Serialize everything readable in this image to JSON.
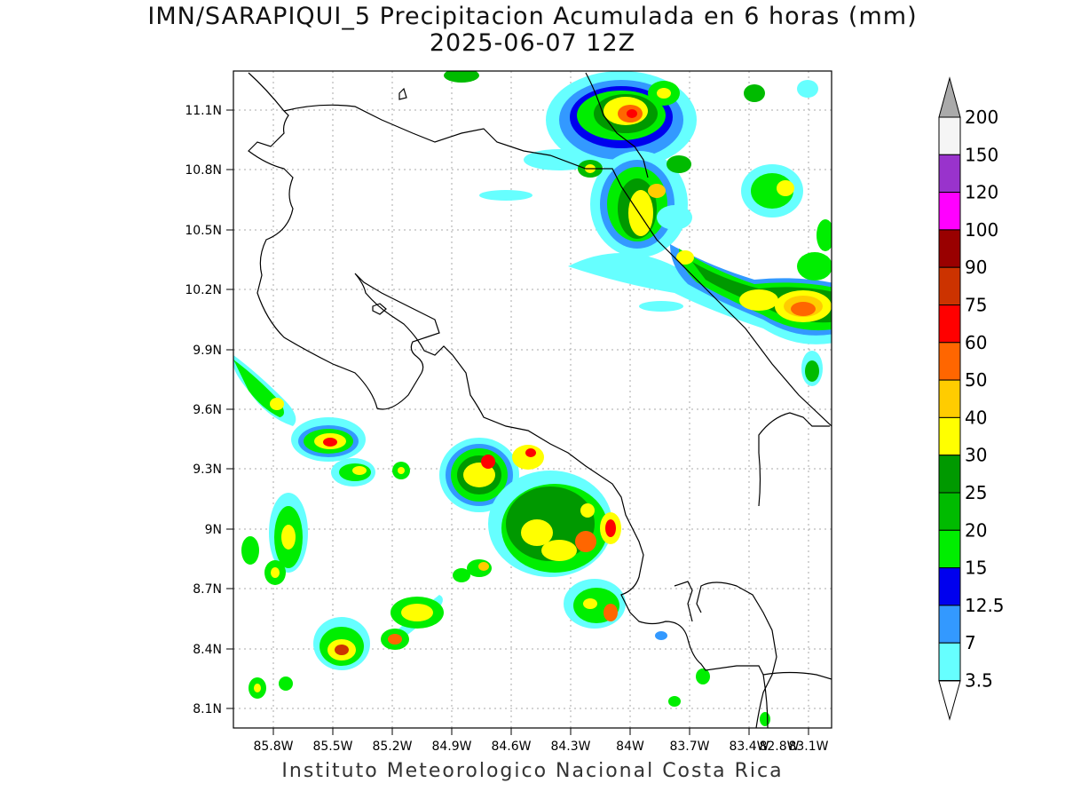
{
  "title": {
    "line1": "IMN/SARAPIQUI_5 Precipitacion Acumulada en 6 horas (mm)",
    "line2": "2025-06-07 12Z"
  },
  "footer": "Instituto Meteorologico Nacional Costa Rica",
  "axes": {
    "lat_labels": [
      "11.1N",
      "10.8N",
      "10.5N",
      "10.2N",
      "9.9N",
      "9.6N",
      "9.3N",
      "9N",
      "8.7N",
      "8.4N",
      "8.1N"
    ],
    "lon_labels": [
      "85.8W",
      "85.5W",
      "85.2W",
      "84.9W",
      "84.6W",
      "84.3W",
      "84W",
      "83.7W",
      "83.4W",
      "83.1W",
      "82.8W"
    ]
  },
  "colorbar": {
    "labels": [
      "200",
      "150",
      "120",
      "100",
      "90",
      "75",
      "60",
      "50",
      "40",
      "30",
      "25",
      "20",
      "15",
      "12.5",
      "7",
      "3.5"
    ],
    "colors": [
      "#f5f5f5",
      "#9933cc",
      "#ff00ff",
      "#990000",
      "#cc3300",
      "#ff0000",
      "#ff6600",
      "#ffcc00",
      "#ffff00",
      "#009900",
      "#00bb00",
      "#00ee00",
      "#0000ee",
      "#3399ff",
      "#66ffff"
    ],
    "top_cap_color": "#aaaaaa",
    "bottom_cap_color": "#ffffff"
  }
}
